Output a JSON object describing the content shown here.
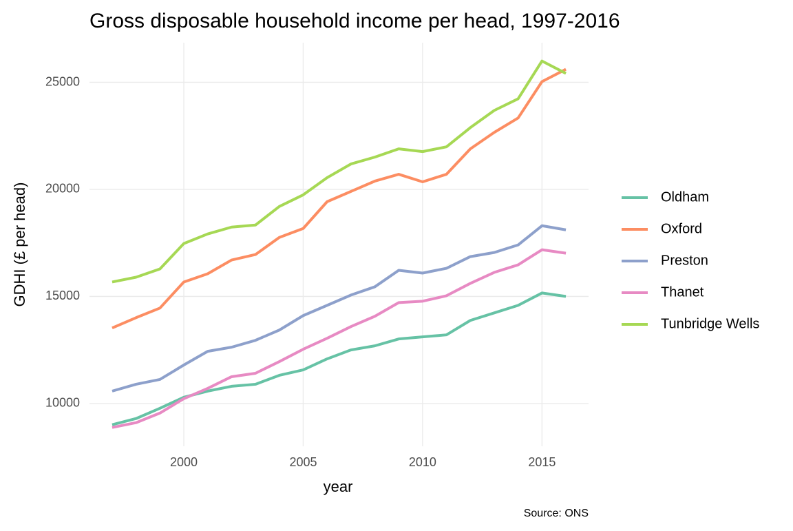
{
  "chart_data": {
    "type": "line",
    "title": "Gross disposable household income per head, 1997-2016",
    "x_label": "year",
    "y_label": "GDHI (£ per head)",
    "caption": "Source: ONS",
    "x": [
      1997,
      1998,
      1999,
      2000,
      2001,
      2002,
      2003,
      2004,
      2005,
      2006,
      2007,
      2008,
      2009,
      2010,
      2011,
      2012,
      2013,
      2014,
      2015,
      2016
    ],
    "xlim": [
      1996.05,
      2016.95
    ],
    "xticks": [
      2000,
      2005,
      2010,
      2015
    ],
    "ylim": [
      8000,
      26850
    ],
    "yticks": [
      10000,
      15000,
      20000,
      25000
    ],
    "grid": true,
    "legend": "right",
    "series": [
      {
        "name": "Oldham",
        "color": "#66c2a5",
        "values": [
          9006,
          9295,
          9776,
          10289,
          10577,
          10801,
          10897,
          11314,
          11570,
          12083,
          12500,
          12692,
          13013,
          13109,
          13205,
          13878,
          14231,
          14583,
          15160,
          15000
        ]
      },
      {
        "name": "Oxford",
        "color": "#fc8d62",
        "values": [
          13526,
          14006,
          14455,
          15673,
          16058,
          16699,
          16955,
          17756,
          18173,
          19423,
          19904,
          20385,
          20705,
          20353,
          20705,
          21891,
          22660,
          23333,
          25032,
          25609
        ]
      },
      {
        "name": "Preston",
        "color": "#8da0cb",
        "values": [
          10577,
          10897,
          11122,
          11795,
          12436,
          12628,
          12949,
          13429,
          14103,
          14583,
          15064,
          15449,
          16218,
          16090,
          16314,
          16859,
          17051,
          17404,
          18301,
          18109
        ]
      },
      {
        "name": "Thanet",
        "color": "#e78ac3",
        "values": [
          8878,
          9103,
          9551,
          10224,
          10705,
          11250,
          11410,
          11955,
          12532,
          13045,
          13590,
          14071,
          14712,
          14776,
          15032,
          15609,
          16122,
          16474,
          17179,
          17019
        ]
      },
      {
        "name": "Tunbridge Wells",
        "color": "#a6d854",
        "values": [
          15673,
          15897,
          16282,
          17468,
          17917,
          18237,
          18333,
          19199,
          19744,
          20545,
          21186,
          21506,
          21891,
          21763,
          21987,
          22885,
          23686,
          24231,
          25994,
          25417
        ]
      }
    ]
  }
}
